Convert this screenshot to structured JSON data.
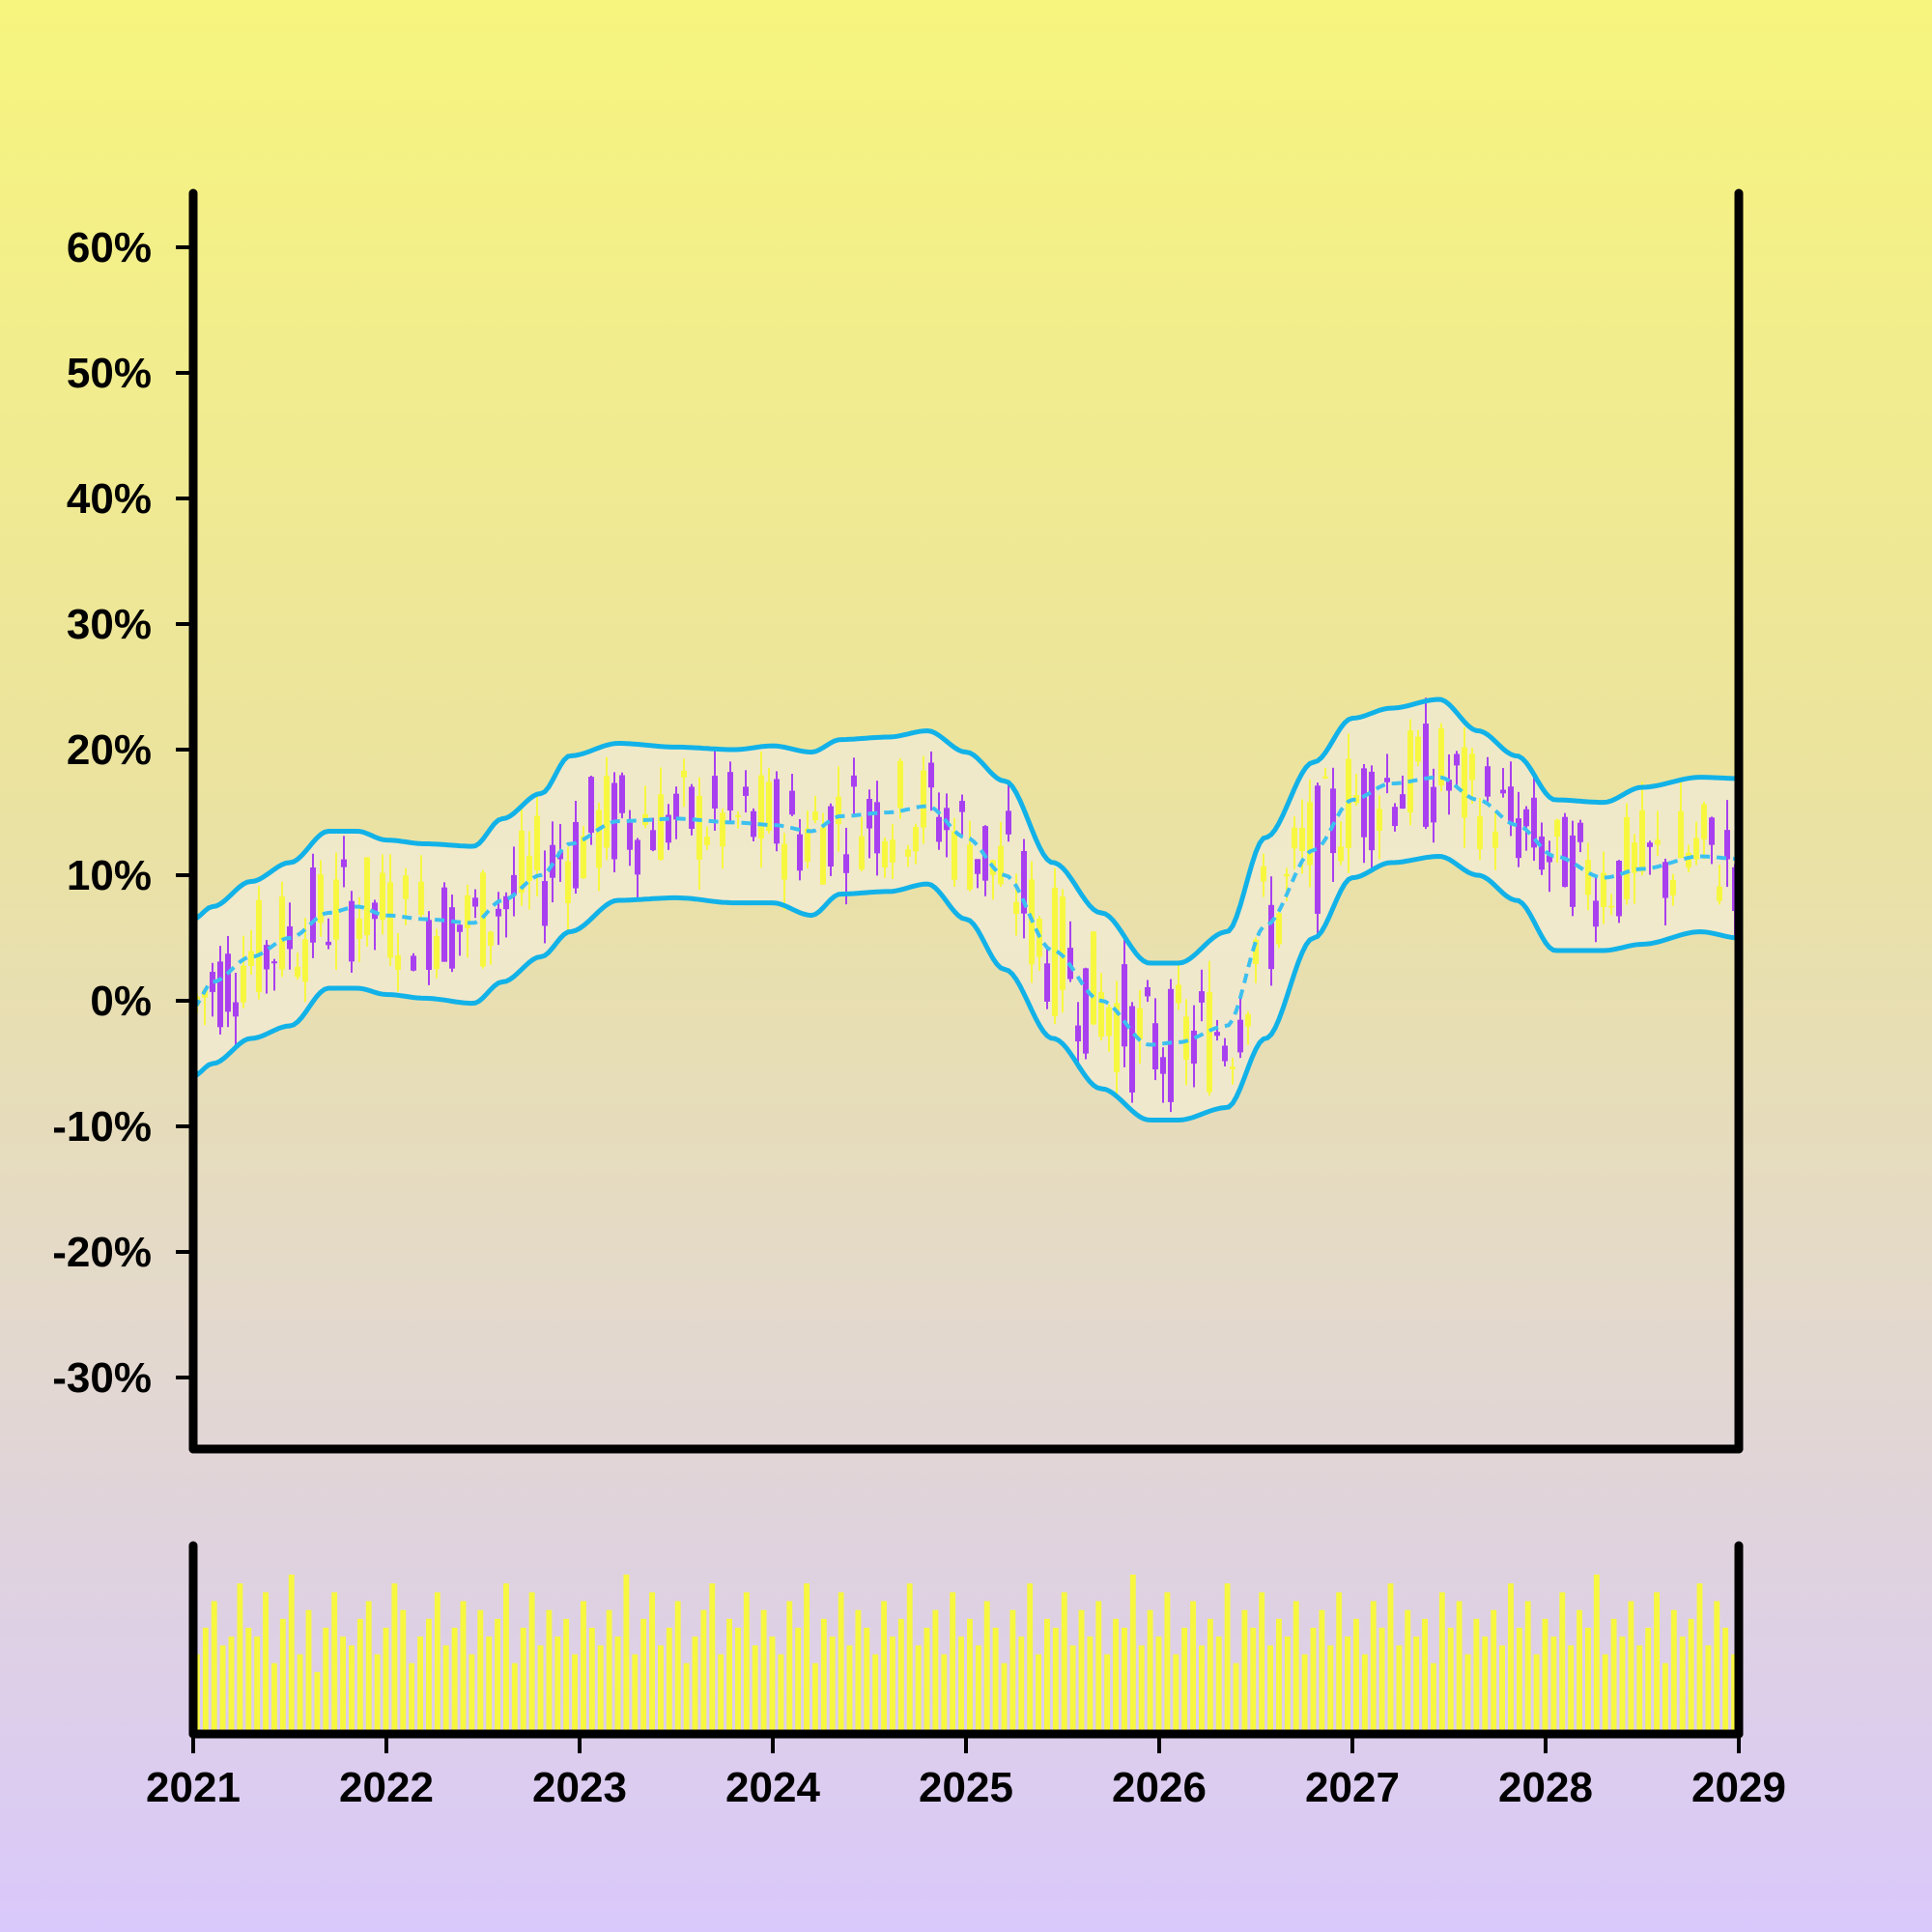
{
  "colors": {
    "band_line": "#12b2e8",
    "band_fill": "#f1ead0",
    "candle_up": "#f7f740",
    "candle_down": "#a840f0",
    "volume": "#f7f740",
    "axis": "#000000"
  },
  "chart_data": [
    {
      "type": "candlestick",
      "title": "",
      "xlabel": "",
      "ylabel": "",
      "x_range": [
        2021,
        2029
      ],
      "ylim": [
        -35,
        65
      ],
      "y_ticks": [
        60,
        50,
        40,
        30,
        20,
        10,
        0,
        -10,
        -20,
        -30
      ],
      "y_tick_labels": [
        "60%",
        "50%",
        "40%",
        "30%",
        "20%",
        "10%",
        "0%",
        "-10%",
        "-20%",
        "-30%"
      ],
      "grid": false,
      "bollinger": {
        "x": [
          2021.0,
          2021.1,
          2021.3,
          2021.5,
          2021.7,
          2021.85,
          2022.0,
          2022.2,
          2022.45,
          2022.6,
          2022.8,
          2022.95,
          2023.2,
          2023.5,
          2023.8,
          2024.0,
          2024.2,
          2024.35,
          2024.6,
          2024.8,
          2025.0,
          2025.2,
          2025.45,
          2025.7,
          2025.95,
          2026.1,
          2026.35,
          2026.55,
          2026.8,
          2027.0,
          2027.2,
          2027.45,
          2027.65,
          2027.85,
          2028.05,
          2028.3,
          2028.5,
          2028.8,
          2029.0
        ],
        "middle": [
          -0.5,
          1.5,
          3.5,
          5,
          7,
          7.5,
          6.8,
          6.5,
          6.2,
          8,
          10,
          12.5,
          14.3,
          14.5,
          14.2,
          14,
          13.5,
          14.7,
          15,
          15.5,
          13,
          10,
          4,
          0,
          -3.5,
          -3.3,
          -2,
          6,
          12,
          16,
          17.3,
          17.8,
          16,
          14,
          11.5,
          9.8,
          10.5,
          11.5,
          11.3
        ],
        "upper": [
          6.5,
          7.5,
          9.5,
          11,
          13.5,
          13.5,
          12.8,
          12.5,
          12.3,
          14.5,
          16.5,
          19.5,
          20.5,
          20.2,
          20,
          20.3,
          19.8,
          20.8,
          21,
          21.5,
          19.8,
          17.5,
          11,
          7,
          3,
          3,
          5.5,
          13,
          19,
          22.5,
          23.3,
          24,
          21.5,
          19.5,
          16,
          15.8,
          17,
          17.8,
          17.7
        ],
        "lower": [
          -6,
          -5,
          -3,
          -2,
          1,
          1,
          0.5,
          0.2,
          -0.2,
          1.5,
          3.5,
          5.5,
          8,
          8.2,
          7.8,
          7.8,
          6.8,
          8.5,
          8.7,
          9.3,
          6.5,
          2.5,
          -3,
          -7,
          -9.5,
          -9.5,
          -8.5,
          -3,
          5,
          9.8,
          11,
          11.5,
          10,
          8,
          4,
          4,
          4.5,
          5.5,
          5
        ]
      },
      "volume": {
        "values": [
          9,
          12,
          15,
          10,
          11,
          17,
          12,
          11,
          16,
          8,
          13,
          18,
          9,
          14,
          7,
          12,
          16,
          11,
          10,
          13,
          15,
          9,
          12,
          17,
          14,
          8,
          11,
          13,
          16,
          10,
          12,
          15,
          9,
          14,
          11,
          13,
          17,
          8,
          12,
          16,
          10,
          14,
          11,
          13,
          9,
          15,
          12,
          10,
          14,
          11,
          18,
          9,
          13,
          16,
          10,
          12,
          15,
          8,
          11,
          14,
          17,
          9,
          13,
          12,
          16,
          10,
          14,
          11,
          9,
          15,
          12,
          17,
          8,
          13,
          11,
          16,
          10,
          14,
          12,
          9,
          15,
          11,
          13,
          17,
          10,
          12,
          14,
          9,
          16,
          11,
          13,
          10,
          15,
          12,
          8,
          14,
          11,
          17,
          9,
          13,
          12,
          16,
          10,
          14,
          11,
          15,
          9,
          13,
          12,
          18,
          10,
          14,
          11,
          16,
          9,
          12,
          15,
          10,
          13,
          11,
          17,
          8,
          14,
          12,
          16,
          10,
          13,
          11,
          15,
          9,
          12,
          14,
          10,
          16,
          11,
          13,
          9,
          15,
          12,
          17,
          10,
          14,
          11,
          13,
          8,
          16,
          12,
          15,
          9,
          13,
          11,
          14,
          10,
          17,
          12,
          15,
          9,
          13,
          11,
          16,
          10,
          14,
          12,
          18,
          9,
          13,
          11,
          15,
          10,
          12,
          16,
          8,
          14,
          11,
          13,
          17,
          10,
          15,
          12,
          9
        ]
      }
    }
  ]
}
